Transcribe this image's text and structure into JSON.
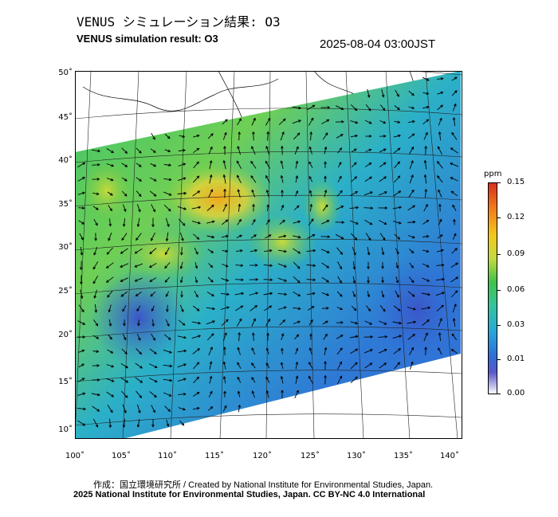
{
  "header": {
    "title_jp": "VENUS シミュレーション結果: O3",
    "title_en": "VENUS simulation result: O3",
    "timestamp": "2025-08-04 03:00JST"
  },
  "map": {
    "lat_labels": [
      "50˚",
      "45˚",
      "40˚",
      "35˚",
      "30˚",
      "25˚",
      "20˚",
      "15˚",
      "10˚"
    ],
    "lon_labels": [
      "100˚",
      "105˚",
      "110˚",
      "115˚",
      "120˚",
      "125˚",
      "130˚",
      "135˚",
      "140˚"
    ],
    "variable": "O3",
    "overlay": "wind-vectors"
  },
  "colorbar": {
    "unit": "ppm",
    "tick_labels": [
      "0.15",
      "0.12",
      "0.09",
      "0.06",
      "0.03",
      "0.01",
      "0.00"
    ],
    "colors": [
      "#d7301f",
      "#f07c1a",
      "#f2c81c",
      "#40c24a",
      "#2aa8d8",
      "#2f6fd6",
      "#ffffff"
    ]
  },
  "footer": {
    "credit": "作成：国立環境研究所 / Created by National Institute for Environmental Studies, Japan.",
    "copyright": "2025 National Institute for Environmental Studies, Japan. CC BY-NC 4.0 International"
  }
}
